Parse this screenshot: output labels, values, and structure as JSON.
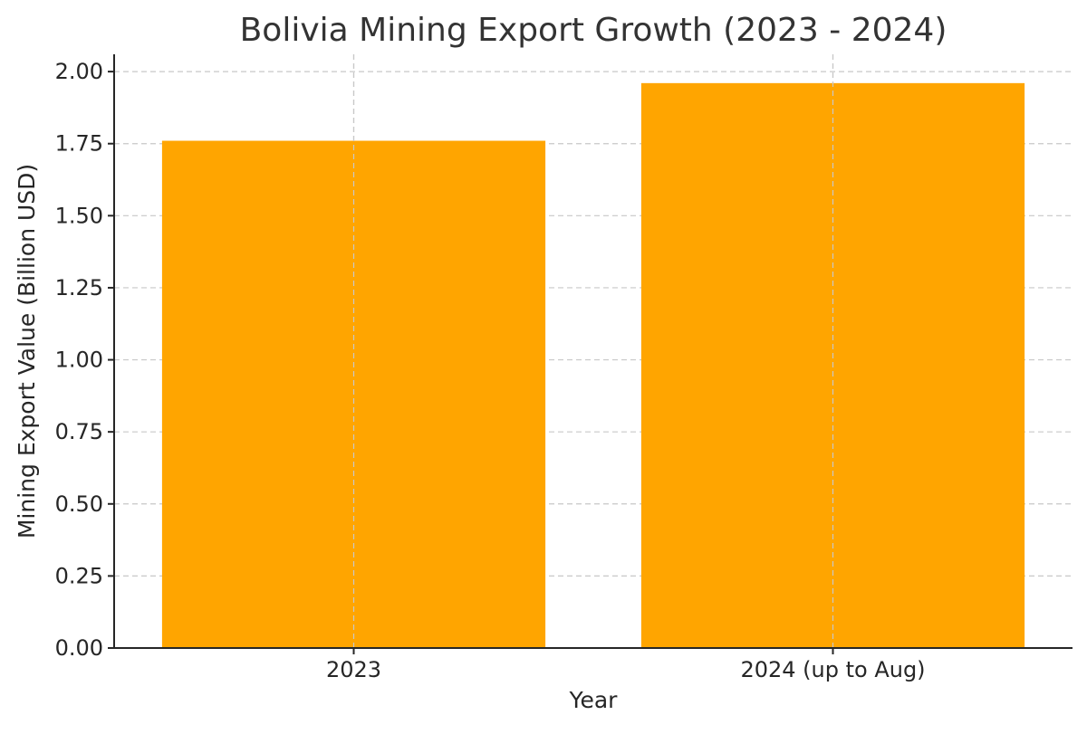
{
  "chart_data": {
    "type": "bar",
    "title": "Bolivia Mining Export Growth (2023 - 2024)",
    "xlabel": "Year",
    "ylabel": "Mining Export Value (Billion USD)",
    "categories": [
      "2023",
      "2024 (up to Aug)"
    ],
    "values": [
      1.76,
      1.96
    ],
    "ylim": [
      0,
      2.06
    ],
    "yticks": [
      0,
      0.25,
      0.5,
      0.75,
      1.0,
      1.25,
      1.5,
      1.75,
      2.0
    ],
    "ytick_labels": [
      "0.00",
      "0.25",
      "0.50",
      "0.75",
      "1.00",
      "1.25",
      "1.50",
      "1.75",
      "2.00"
    ],
    "bar_color": "#FFA500",
    "grid": true,
    "legend": "none"
  }
}
